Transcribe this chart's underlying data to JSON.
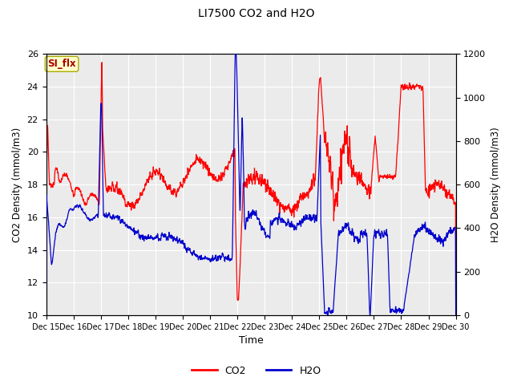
{
  "title": "LI7500 CO2 and H2O",
  "xlabel": "Time",
  "ylabel_left": "CO2 Density (mmol/m3)",
  "ylabel_right": "H2O Density (mmol/m3)",
  "ylim_left": [
    10,
    26
  ],
  "ylim_right": [
    0,
    1200
  ],
  "yticks_left": [
    10,
    12,
    14,
    16,
    18,
    20,
    22,
    24,
    26
  ],
  "yticks_right": [
    0,
    200,
    400,
    600,
    800,
    1000,
    1200
  ],
  "xtick_labels": [
    "Dec 15",
    "Dec 16",
    "Dec 17",
    "Dec 18",
    "Dec 19",
    "Dec 20",
    "Dec 21",
    "Dec 22",
    "Dec 23",
    "Dec 24",
    "Dec 25",
    "Dec 26",
    "Dec 27",
    "Dec 28",
    "Dec 29",
    "Dec 30"
  ],
  "co2_color": "#FF0000",
  "h2o_color": "#0000CC",
  "bg_color": "#E8E8E8",
  "inner_bg_color": "#EBEBEB",
  "si_flx_bg": "#FFFFCC",
  "si_flx_border": "#AAAA00",
  "si_flx_text_color": "#AA0000",
  "legend_co2": "CO2",
  "legend_h2o": "H2O",
  "annotation_text": "SI_flx"
}
